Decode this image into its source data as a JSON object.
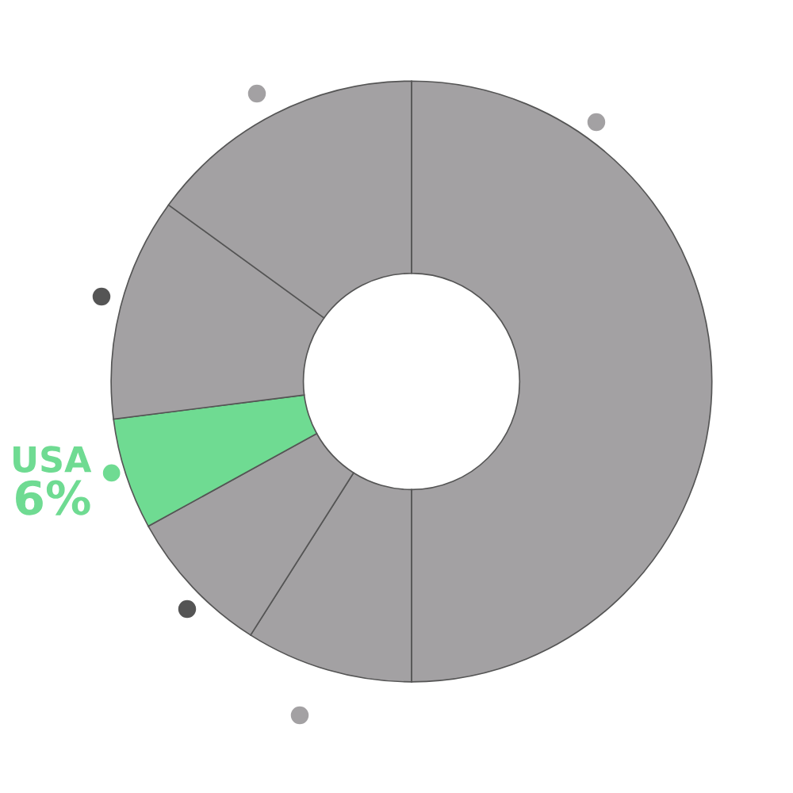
{
  "chart_data": {
    "type": "donut",
    "categories": [
      null,
      null,
      null,
      "USA",
      null,
      null
    ],
    "values": [
      50,
      9,
      8,
      6,
      12,
      15
    ],
    "colors": [
      "#a3a1a3",
      "#a3a1a3",
      "#a3a1a3",
      "#6fdb92",
      "#a3a1a3",
      "#a3a1a3"
    ],
    "value_labels": [
      null,
      null,
      null,
      "6%",
      null,
      null
    ]
  }
}
